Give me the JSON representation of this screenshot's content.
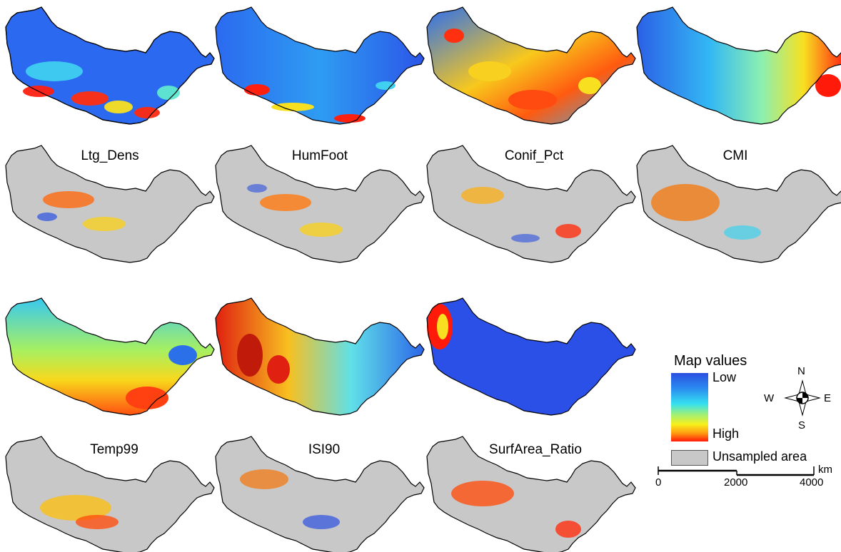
{
  "panels": [
    {
      "label": "Ltg_Dens",
      "top_map": "variable-map",
      "bottom_map": "residual-map"
    },
    {
      "label": "HumFoot",
      "top_map": "variable-map",
      "bottom_map": "residual-map"
    },
    {
      "label": "Conif_Pct",
      "top_map": "variable-map",
      "bottom_map": "residual-map"
    },
    {
      "label": "CMI",
      "top_map": "variable-map",
      "bottom_map": "residual-map"
    },
    {
      "label": "Temp99",
      "top_map": "variable-map",
      "bottom_map": "residual-map"
    },
    {
      "label": "ISI90",
      "top_map": "variable-map",
      "bottom_map": "residual-map"
    },
    {
      "label": "SurfArea_Ratio",
      "top_map": "variable-map",
      "bottom_map": "residual-map"
    }
  ],
  "legend": {
    "title": "Map values",
    "low": "Low",
    "high": "High",
    "unsampled": "Unsampled area",
    "colors": {
      "low": "#2b4fe0",
      "mid": "#35e0f0",
      "high_mid": "#f8f01c",
      "high": "#ff1a0a",
      "unsampled": "#c8c8c8"
    }
  },
  "compass": {
    "n": "N",
    "s": "S",
    "e": "E",
    "w": "W"
  },
  "scalebar": {
    "ticks": [
      "0",
      "2000",
      "4000"
    ],
    "unit": "km"
  }
}
